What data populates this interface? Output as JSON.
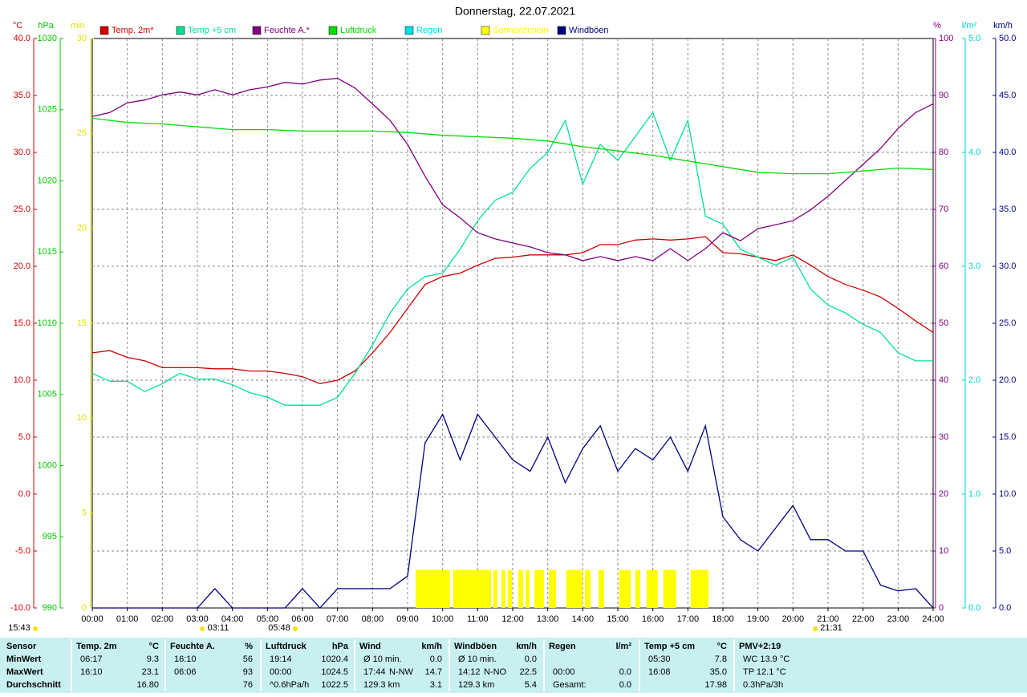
{
  "chart_data": {
    "type": "line",
    "title": "Donnerstag, 22.07.2021",
    "y_label": "°C",
    "y2_label": "hPa",
    "y3_label": "min",
    "y4_label": "%",
    "y5_label": "l/m²",
    "y6_label": "km/h",
    "xlim": [
      0,
      24
    ],
    "xticks": [
      {
        "value": 0,
        "label": "00:00"
      },
      {
        "value": 1,
        "label": "01:00"
      },
      {
        "value": 2,
        "label": "02:00"
      },
      {
        "value": 3,
        "label": "03:00"
      },
      {
        "value": 4,
        "label": "04:00"
      },
      {
        "value": 5,
        "label": "05:00"
      },
      {
        "value": 6,
        "label": "06:00"
      },
      {
        "value": 7,
        "label": "07:00"
      },
      {
        "value": 8,
        "label": "08:00"
      },
      {
        "value": 9,
        "label": "09:00"
      },
      {
        "value": 10,
        "label": "10:00"
      },
      {
        "value": 11,
        "label": "11:00"
      },
      {
        "value": 12,
        "label": "12:00"
      },
      {
        "value": 13,
        "label": "13:00"
      },
      {
        "value": 14,
        "label": "14:00"
      },
      {
        "value": 15,
        "label": "15:00"
      },
      {
        "value": 16,
        "label": "16:00"
      },
      {
        "value": 17,
        "label": "17:00"
      },
      {
        "value": 18,
        "label": "18:00"
      },
      {
        "value": 19,
        "label": "19:00"
      },
      {
        "value": 20,
        "label": "20:00"
      },
      {
        "value": 21,
        "label": "21:00"
      },
      {
        "value": 22,
        "label": "22:00"
      },
      {
        "value": 23,
        "label": "23:00"
      },
      {
        "value": 24,
        "label": "24:00"
      }
    ],
    "ylim": [
      -10,
      40
    ],
    "yticks": [
      {
        "value": -10,
        "label": "-10.0"
      },
      {
        "value": -5,
        "label": "-5.0"
      },
      {
        "value": 0,
        "label": "0.0"
      },
      {
        "value": 5,
        "label": "5.0"
      },
      {
        "value": 10,
        "label": "10.0"
      },
      {
        "value": 15,
        "label": "15.0"
      },
      {
        "value": 20,
        "label": "20.0"
      },
      {
        "value": 25,
        "label": "25.0"
      },
      {
        "value": 30,
        "label": "30.0"
      },
      {
        "value": 35,
        "label": "35.0"
      },
      {
        "value": 40,
        "label": "40.0"
      }
    ],
    "y2lim": [
      990,
      1030
    ],
    "y2ticks": [
      990,
      995,
      1000,
      1005,
      1010,
      1015,
      1020,
      1025,
      1030
    ],
    "y3lim": [
      0,
      30
    ],
    "y3ticks": [
      0,
      5,
      10,
      15,
      20,
      25,
      30
    ],
    "y4lim": [
      0,
      100
    ],
    "y4ticks": [
      0,
      10,
      20,
      30,
      40,
      50,
      60,
      70,
      80,
      90,
      100
    ],
    "y5lim": [
      0,
      5
    ],
    "y5ticks": [
      {
        "value": 0,
        "label": "0.0"
      },
      {
        "value": 1,
        "label": "1.0"
      },
      {
        "value": 2,
        "label": "2.0"
      },
      {
        "value": 3,
        "label": "3.0"
      },
      {
        "value": 4,
        "label": "4.0"
      },
      {
        "value": 5,
        "label": "5.0"
      }
    ],
    "y6lim": [
      0,
      50
    ],
    "y6ticks": [
      {
        "value": 0,
        "label": "0.0"
      },
      {
        "value": 5,
        "label": "5.0"
      },
      {
        "value": 10,
        "label": "10.0"
      },
      {
        "value": 15,
        "label": "15.0"
      },
      {
        "value": 20,
        "label": "20.0"
      },
      {
        "value": 25,
        "label": "25.0"
      },
      {
        "value": 30,
        "label": "30.0"
      },
      {
        "value": 35,
        "label": "35.0"
      },
      {
        "value": 40,
        "label": "40.0"
      },
      {
        "value": 45,
        "label": "45.0"
      },
      {
        "value": 50,
        "label": "50.0"
      }
    ],
    "grid": true,
    "series": [
      {
        "name": "Temp. 2m*",
        "color": "#d00000",
        "axis": "y",
        "x": [
          0,
          0.5,
          1,
          1.5,
          2,
          2.5,
          3,
          3.5,
          4,
          4.5,
          5,
          5.5,
          6,
          6.5,
          7,
          7.5,
          8,
          8.5,
          9,
          9.5,
          10,
          10.5,
          11,
          11.5,
          12,
          12.5,
          13,
          13.5,
          14,
          14.5,
          15,
          15.5,
          16,
          16.5,
          17,
          17.5,
          18,
          18.5,
          19,
          19.5,
          20,
          20.5,
          21,
          21.5,
          22,
          22.5,
          23,
          23.5,
          24
        ],
        "values": [
          12.4,
          12.6,
          12.0,
          11.7,
          11.1,
          11.1,
          11.1,
          11.0,
          11.0,
          10.8,
          10.8,
          10.6,
          10.3,
          9.7,
          10.0,
          10.8,
          12.4,
          14.2,
          16.3,
          18.4,
          19.1,
          19.4,
          20.1,
          20.7,
          20.8,
          21.0,
          21.0,
          21.0,
          21.2,
          21.9,
          21.9,
          22.3,
          22.4,
          22.3,
          22.4,
          22.6,
          21.2,
          21.1,
          20.8,
          20.5,
          21.0,
          20.1,
          19.1,
          18.4,
          17.9,
          17.3,
          16.3,
          15.2,
          14.2
        ]
      },
      {
        "name": "Temp +5 cm",
        "color": "#00e090",
        "axis": "y",
        "x": [
          0,
          0.5,
          1,
          1.5,
          2,
          2.5,
          3,
          3.5,
          4,
          4.5,
          5,
          5.5,
          6,
          6.5,
          7,
          7.5,
          8,
          8.5,
          9,
          9.5,
          10,
          10.5,
          11,
          11.5,
          12,
          12.5,
          13,
          13.5,
          14,
          14.5,
          15,
          15.5,
          16,
          16.5,
          17,
          17.5,
          18,
          18.5,
          19,
          19.5,
          20,
          20.5,
          21,
          21.5,
          22,
          22.5,
          23,
          23.5,
          24
        ],
        "values": [
          10.6,
          9.9,
          9.9,
          9.0,
          9.7,
          10.6,
          10.1,
          10.1,
          9.6,
          8.9,
          8.5,
          7.8,
          7.8,
          7.8,
          8.5,
          10.6,
          13.1,
          15.9,
          18.0,
          19.1,
          19.4,
          21.5,
          24.0,
          25.8,
          26.5,
          28.6,
          30.0,
          32.8,
          27.2,
          30.7,
          29.3,
          31.4,
          33.5,
          29.3,
          32.8,
          24.4,
          23.7,
          21.5,
          20.8,
          20.1,
          20.8,
          18.0,
          16.6,
          15.9,
          14.9,
          14.2,
          12.4,
          11.7,
          11.7
        ]
      },
      {
        "name": "Feuchte A.*",
        "color": "#800080",
        "axis": "y4",
        "x": [
          0,
          0.5,
          1,
          1.5,
          2,
          2.5,
          3,
          3.5,
          4,
          4.5,
          5,
          5.5,
          6,
          6.5,
          7,
          7.5,
          8,
          8.5,
          9,
          9.5,
          10,
          10.5,
          11,
          11.5,
          12,
          12.5,
          13,
          13.5,
          14,
          14.5,
          15,
          15.5,
          16,
          16.5,
          17,
          17.5,
          18,
          18.5,
          19,
          19.5,
          20,
          20.5,
          21,
          21.5,
          22,
          22.5,
          23,
          23.5,
          24
        ],
        "values": [
          86.3,
          87.0,
          88.7,
          89.2,
          90.1,
          90.6,
          90.1,
          91.0,
          90.1,
          91.0,
          91.5,
          92.3,
          92.0,
          92.7,
          93.0,
          91.3,
          88.5,
          85.6,
          81.4,
          75.8,
          70.8,
          68.5,
          65.9,
          64.8,
          64.1,
          63.4,
          62.4,
          62.0,
          61.0,
          61.7,
          61.0,
          61.7,
          61.0,
          63.1,
          61.0,
          63.1,
          65.9,
          64.5,
          66.6,
          67.3,
          68.0,
          69.9,
          72.3,
          75.1,
          77.9,
          80.7,
          84.2,
          87.0,
          88.5
        ]
      },
      {
        "name": "Luftdruck",
        "color": "#00dd00",
        "axis": "y2",
        "x": [
          0,
          1,
          2,
          3,
          4,
          5,
          6,
          7,
          8,
          9,
          10,
          11,
          12,
          13,
          14,
          15,
          16,
          17,
          18,
          19,
          20,
          21,
          22,
          23,
          24
        ],
        "values": [
          1024.4,
          1024.1,
          1024.0,
          1023.8,
          1023.6,
          1023.6,
          1023.5,
          1023.5,
          1023.5,
          1023.4,
          1023.2,
          1023.1,
          1023.0,
          1022.8,
          1022.4,
          1022.1,
          1021.8,
          1021.4,
          1021.0,
          1020.6,
          1020.5,
          1020.5,
          1020.7,
          1020.9,
          1020.8
        ]
      },
      {
        "name": "Regen",
        "color": "#00e0e0",
        "axis": "y5",
        "x": [],
        "values": []
      },
      {
        "name": "Sonnenschein",
        "color": "#ffff00",
        "axis": "y3",
        "mark": "bar",
        "x_start": [
          9.23,
          10.3,
          11.45,
          11.68,
          11.86,
          12.16,
          12.37,
          12.62,
          13.03,
          13.53,
          14.06,
          14.45,
          15.04,
          15.5,
          15.82,
          16.3,
          17.08
        ],
        "x_end": [
          10.21,
          11.38,
          11.56,
          11.79,
          11.98,
          12.3,
          12.48,
          12.89,
          13.24,
          13.99,
          14.22,
          14.61,
          15.37,
          15.64,
          16.14,
          16.67,
          17.59
        ],
        "values": [
          2,
          2,
          2,
          2,
          2,
          2,
          2,
          2,
          2,
          2,
          2,
          2,
          2,
          2,
          2,
          2,
          2
        ]
      },
      {
        "name": "Windböen",
        "color": "#000080",
        "axis": "y6",
        "x": [
          0,
          0.5,
          1,
          1.5,
          2,
          2.5,
          3,
          3.5,
          4,
          4.5,
          5,
          5.5,
          6,
          6.5,
          7,
          7.5,
          8,
          8.5,
          9,
          9.5,
          10,
          10.5,
          11,
          11.5,
          12,
          12.5,
          13,
          13.5,
          14,
          14.5,
          15,
          15.5,
          16,
          16.5,
          17,
          17.5,
          18,
          18.5,
          19,
          19.5,
          20,
          20.5,
          21,
          21.5,
          22,
          22.5,
          23,
          23.5,
          24
        ],
        "values": [
          0,
          0,
          0,
          0,
          0,
          0,
          0,
          1.7,
          0,
          0,
          0,
          0,
          1.7,
          0,
          1.7,
          1.7,
          1.7,
          1.7,
          2.8,
          14.5,
          17,
          13,
          17,
          15,
          13,
          12,
          15,
          11,
          14,
          16,
          12,
          14,
          13,
          15,
          12,
          16,
          8,
          6,
          5,
          7,
          9,
          6,
          6,
          5,
          5,
          2,
          1.5,
          1.7,
          0
        ]
      }
    ],
    "annotations": [
      "15:43",
      "03:11",
      "05:48",
      "21:31"
    ]
  },
  "table": {
    "row_labels": [
      "Sensor",
      "MinWert",
      "MaxWert",
      "Durchschnitt"
    ],
    "groups": [
      {
        "name": "Temp. 2m",
        "unit": "°C",
        "rows": [
          {
            "left": "06:17",
            "right": "9.3"
          },
          {
            "left": "16:10",
            "right": "23.1"
          },
          {
            "right": "16.80"
          }
        ]
      },
      {
        "name": "Feuchte A.",
        "unit": "%",
        "rows": [
          {
            "left": "16:10",
            "right": "56"
          },
          {
            "left": "06:06",
            "right": "93"
          },
          {
            "right": "76"
          }
        ]
      },
      {
        "name": "Luftdruck",
        "unit": "hPa",
        "rows": [
          {
            "left": "19:14",
            "right": "1020.4"
          },
          {
            "left": "00:00",
            "right": "1024.5"
          },
          {
            "left": "^0.6hPa/h",
            "right": "1022.5"
          }
        ]
      },
      {
        "name": "Wind",
        "unit": "km/h",
        "rows": [
          {
            "left": "Ø 10 min.",
            "right": "0.0"
          },
          {
            "left": "17:44",
            "mid": "N-NW",
            "right": "14.7"
          },
          {
            "left": "129.3 km",
            "right": "3.1"
          }
        ]
      },
      {
        "name": "Windböen",
        "unit": "km/h",
        "rows": [
          {
            "left": "Ø 10 min.",
            "right": "0.0"
          },
          {
            "left": "14:12",
            "mid": "N-NO",
            "right": "22.5"
          },
          {
            "left": "129.3 km",
            "right": "5.4"
          }
        ]
      },
      {
        "name": "Regen",
        "unit": "l/m²",
        "rows": [
          {},
          {
            "left": "00:00",
            "right": "0.0"
          },
          {
            "left": "Gesamt:",
            "right": "0.0"
          }
        ]
      },
      {
        "name": "Temp +5 cm",
        "unit": "°C",
        "rows": [
          {
            "left": "05:30",
            "right": "7.8"
          },
          {
            "left": "16:08",
            "right": "35.0"
          },
          {
            "right": "17.98"
          }
        ]
      },
      {
        "name": "PMV+2:19",
        "rows": [
          {
            "left": "WC 13.9 °C"
          },
          {
            "left": "TP 12.1 °C"
          },
          {
            "left": "0.3hPa/3h"
          }
        ]
      }
    ]
  }
}
